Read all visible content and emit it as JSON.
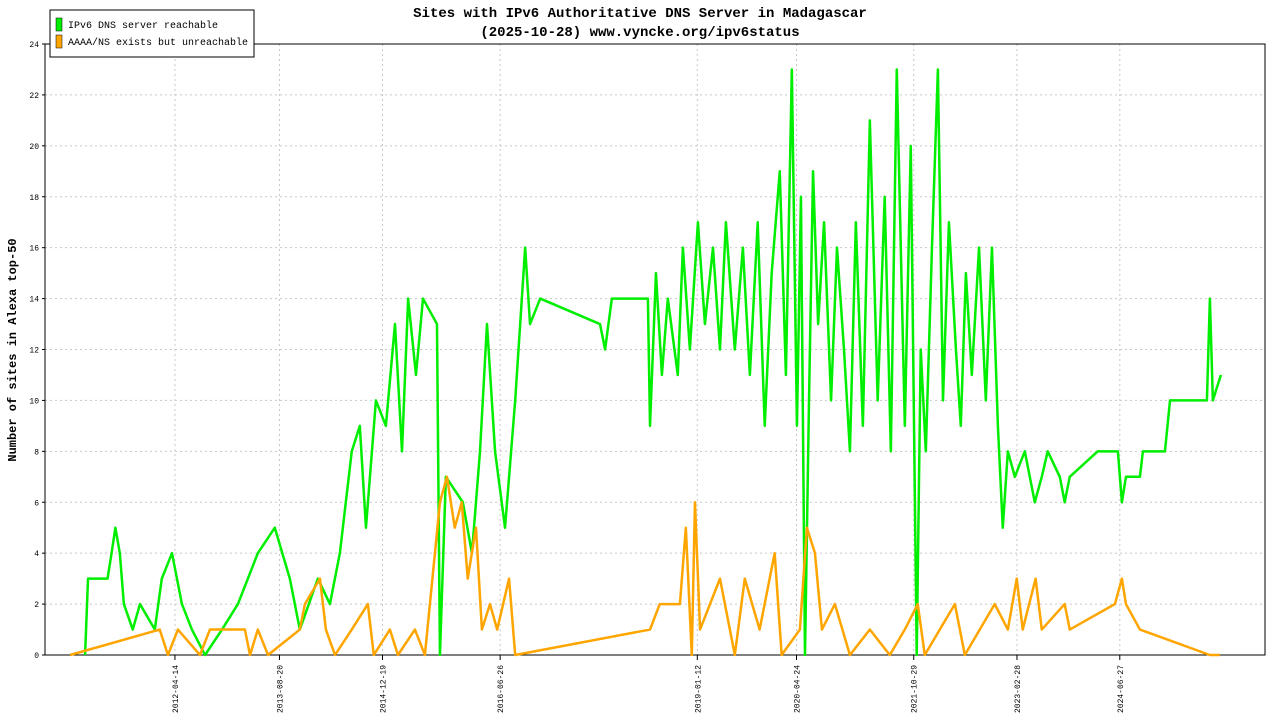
{
  "chart_data": {
    "type": "line",
    "title": "Sites with IPv6 Authoritative DNS Server in Madagascar",
    "subtitle": "(2025-10-28) www.vyncke.org/ipv6status",
    "y_label": "Number of sites in Alexa top-50",
    "xlim": [
      "2010-08-10",
      "2026-05-13"
    ],
    "xticks": [
      "2012-04-14",
      "2013-08-20",
      "2014-12-19",
      "2016-06-26",
      "2019-01-12",
      "2020-04-24",
      "2021-10-29",
      "2023-02-28",
      "2024-06-27"
    ],
    "ylim": [
      0,
      24
    ],
    "yticks": [
      0,
      2,
      4,
      6,
      8,
      10,
      12,
      14,
      16,
      18,
      20,
      22,
      24
    ],
    "grid": true,
    "legend": "top-left",
    "series": [
      {
        "name": "IPv6 DNS server reachable",
        "color": "#00ee00",
        "x": [
          "2011-02-15",
          "2011-03-01",
          "2011-06-01",
          "2011-06-20",
          "2011-07-08",
          "2011-07-29",
          "2011-08-17",
          "2011-09-28",
          "2011-11-01",
          "2012-01-10",
          "2012-02-12",
          "2012-03-31",
          "2012-05-17",
          "2012-07-03",
          "2012-09-03",
          "2012-11-22",
          "2013-02-05",
          "2013-05-10",
          "2013-07-29",
          "2013-10-08",
          "2013-11-24",
          "2014-02-17",
          "2014-04-15",
          "2014-06-01",
          "2014-07-27",
          "2014-09-03",
          "2014-10-02",
          "2014-11-18",
          "2015-01-04",
          "2015-02-16",
          "2015-03-21",
          "2015-04-19",
          "2015-05-26",
          "2015-06-28",
          "2015-09-02",
          "2015-09-16",
          "2015-10-14",
          "2016-01-02",
          "2016-02-14",
          "2016-03-23",
          "2016-04-25",
          "2016-06-02",
          "2016-07-19",
          "2016-09-05",
          "2016-10-22",
          "2016-11-14",
          "2017-01-01",
          "2017-10-10",
          "2017-11-03",
          "2017-12-05",
          "2018-05-24",
          "2018-06-03",
          "2018-07-01",
          "2018-07-29",
          "2018-08-26",
          "2018-10-12",
          "2018-11-05",
          "2018-12-08",
          "2019-01-15",
          "2019-02-17",
          "2019-03-27",
          "2019-04-29",
          "2019-05-27",
          "2019-07-08",
          "2019-08-15",
          "2019-09-17",
          "2019-10-24",
          "2019-11-26",
          "2019-12-29",
          "2020-02-05",
          "2020-03-05",
          "2020-04-02",
          "2020-04-26",
          "2020-05-15",
          "2020-06-03",
          "2020-06-22",
          "2020-07-11",
          "2020-08-04",
          "2020-09-01",
          "2020-10-04",
          "2020-11-01",
          "2020-12-04",
          "2021-01-01",
          "2021-01-29",
          "2021-03-03",
          "2021-04-05",
          "2021-05-12",
          "2021-06-14",
          "2021-07-13",
          "2021-08-10",
          "2021-09-17",
          "2021-10-15",
          "2021-11-12",
          "2021-12-01",
          "2021-12-25",
          "2022-01-23",
          "2022-02-20",
          "2022-03-16",
          "2022-04-13",
          "2022-05-16",
          "2022-06-08",
          "2022-07-02",
          "2022-07-30",
          "2022-09-02",
          "2022-10-04",
          "2022-11-02",
          "2022-11-30",
          "2022-12-23",
          "2023-01-16",
          "2023-02-18",
          "2023-04-06",
          "2023-05-23",
          "2023-06-25",
          "2023-07-23",
          "2023-09-18",
          "2023-10-11",
          "2023-11-04",
          "2024-03-15",
          "2024-06-18",
          "2024-07-07",
          "2024-07-26",
          "2024-09-30",
          "2024-10-14",
          "2025-01-26",
          "2025-02-19",
          "2025-08-12",
          "2025-08-26",
          "2025-09-09",
          "2025-10-17"
        ],
        "values": [
          0,
          3,
          3,
          4,
          5,
          4,
          2,
          1,
          2,
          1,
          3,
          4,
          2,
          1,
          0,
          1,
          2,
          4,
          5,
          3,
          1,
          3,
          2,
          4,
          8,
          9,
          5,
          10,
          9,
          13,
          8,
          14,
          11,
          14,
          13,
          0,
          7,
          6,
          4,
          8,
          13,
          8,
          5,
          10,
          16,
          13,
          14,
          13,
          12,
          14,
          14,
          9,
          15,
          11,
          14,
          11,
          16,
          12,
          17,
          13,
          16,
          12,
          17,
          12,
          16,
          11,
          17,
          9,
          15,
          19,
          11,
          23,
          9,
          18,
          0,
          10,
          19,
          13,
          17,
          10,
          16,
          12,
          8,
          17,
          9,
          21,
          10,
          18,
          8,
          23,
          9,
          20,
          0,
          12,
          8,
          16,
          23,
          10,
          17,
          12,
          9,
          15,
          11,
          16,
          10,
          16,
          9,
          5,
          8,
          7,
          8,
          6,
          7,
          8,
          7,
          6,
          7,
          8,
          8,
          6,
          7,
          7,
          8,
          8,
          10,
          10,
          14,
          10,
          11
        ]
      },
      {
        "name": "AAAA/NS exists but unreachable",
        "color": "#ffa500",
        "x": [
          "2010-12-06",
          "2012-02-02",
          "2012-03-12",
          "2012-04-28",
          "2012-08-10",
          "2012-09-26",
          "2013-03-10",
          "2013-04-03",
          "2013-05-10",
          "2013-06-27",
          "2013-11-24",
          "2013-12-18",
          "2014-02-27",
          "2014-03-27",
          "2014-05-09",
          "2014-07-27",
          "2014-10-11",
          "2014-11-08",
          "2015-01-23",
          "2015-03-02",
          "2015-05-21",
          "2015-07-07",
          "2015-09-16",
          "2015-10-19",
          "2015-11-25",
          "2015-12-28",
          "2016-01-25",
          "2016-03-04",
          "2016-04-01",
          "2016-05-09",
          "2016-06-12",
          "2016-08-07",
          "2016-09-05",
          "2018-06-03",
          "2018-07-19",
          "2018-10-22",
          "2018-11-19",
          "2018-12-17",
          "2019-01-01",
          "2019-01-25",
          "2019-04-29",
          "2019-07-08",
          "2019-08-24",
          "2019-11-02",
          "2020-01-12",
          "2020-02-14",
          "2020-05-10",
          "2020-06-12",
          "2020-07-20",
          "2020-08-22",
          "2020-10-22",
          "2021-01-01",
          "2021-04-05",
          "2021-07-08",
          "2021-09-17",
          "2021-11-17",
          "2021-12-20",
          "2022-03-01",
          "2022-05-11",
          "2022-06-27",
          "2022-11-15",
          "2023-01-16",
          "2023-02-27",
          "2023-03-27",
          "2023-05-27",
          "2023-06-25",
          "2023-10-11",
          "2023-11-04",
          "2024-06-04",
          "2024-07-07",
          "2024-07-26",
          "2024-09-30",
          "2025-08-26",
          "2025-10-12"
        ],
        "values": [
          0,
          1,
          0,
          1,
          0,
          1,
          1,
          0,
          1,
          0,
          1,
          2,
          3,
          1,
          0,
          1,
          2,
          0,
          1,
          0,
          1,
          0,
          6,
          7,
          5,
          6,
          3,
          5,
          1,
          2,
          1,
          3,
          0,
          1,
          2,
          2,
          5,
          0,
          6,
          1,
          3,
          0,
          3,
          1,
          4,
          0,
          1,
          5,
          4,
          1,
          2,
          0,
          1,
          0,
          1,
          2,
          0,
          1,
          2,
          0,
          2,
          1,
          3,
          1,
          3,
          1,
          2,
          1,
          2,
          3,
          2,
          1,
          0,
          0
        ]
      }
    ]
  }
}
